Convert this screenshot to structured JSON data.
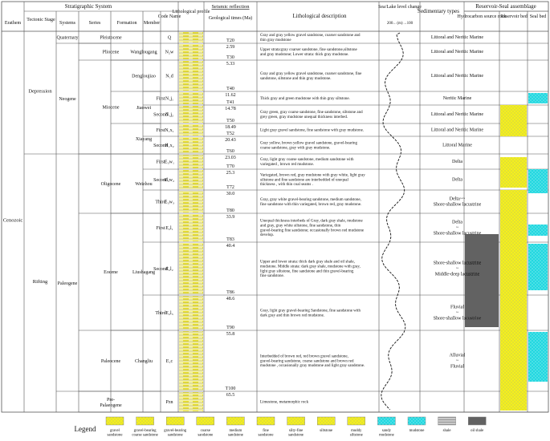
{
  "header": {
    "stratigraphic_system": "Stratigraphic System",
    "erathem": "Erathem",
    "tectonic_stage": "Tectonic Stage",
    "systems": "Systems",
    "series": "Series",
    "formation": "Formation",
    "member": "Member",
    "code_name": "Code Name",
    "lithological_profile": "Lithological profile",
    "seismic_reflection": "Seismic reflection",
    "geological_times": "Geological times (Ma)",
    "lithological_description": "Lithological description",
    "sea_level": "Sea/Lake level change",
    "sea_level_scale": "200←(m)→100",
    "sedimentary_types": "Sedimentary types",
    "assemblage": "Reservoir-Seal assemblage",
    "hydrocarbon_source": "Hydrocarbon source rock",
    "reservoir_bed": "Reservoir bed",
    "seal_bed": "Seal bed"
  },
  "erathem": "Cenozoic",
  "tectonic_stages": [
    "Depression",
    "Rifting"
  ],
  "systems": [
    "Quaternary",
    "Neogene",
    "Paleogene"
  ],
  "series": [
    "Pleistocene",
    "Pliocene",
    "Miocene",
    "Oligocene",
    "Eocene",
    "Paleocene",
    "Pre-Palaeogene"
  ],
  "formations": [
    "Wanglougang",
    "Dengloujiao",
    "Jiaowei",
    "Xiayang",
    "Weizhou",
    "Liushagang",
    "Changliu"
  ],
  "rows": [
    {
      "member": "",
      "code": "Q",
      "seismic": "T20",
      "age": "",
      "desc": "Gray and gray yellow gravel sandstone, coarser sandstone and thin gray mudstone",
      "sed": "Littoral and Neritic Marine"
    },
    {
      "member": "",
      "code": "N₂w",
      "seismic": "T30",
      "age": "2.59",
      "desc": "Upper strata:gray coarser sandstone, fine sandstone,siltstone and gray mudstone; Lower strata: thick gray mudstone.",
      "sed": "Littoral and Neritic Marine"
    },
    {
      "member": "",
      "code": "N₁d",
      "seismic": "T40",
      "age": "5.33",
      "desc": "Gray and gray yellow gravel sandstone, coarser sandstone, fine sandstone, siltstone and thin gray mudstone.",
      "sed": "Littoral and Neritic Marine"
    },
    {
      "member": "First",
      "code": "N₁j₁",
      "seismic": "T41",
      "age": "11.62",
      "desc": "Thick gray and green mudstone with thin gray siltstone.",
      "sed": "Neritic Marine"
    },
    {
      "member": "Second",
      "code": "N₁j₂",
      "seismic": "T50",
      "age": "14.78",
      "desc": "Gray green, gray coarse sandstone, fine sandstone, siltstone and grey green, gray mudstone unequal thickness interbed.",
      "sed": "Littoral and Neritic Marine"
    },
    {
      "member": "First",
      "code": "N₁x₁",
      "seismic": "T52",
      "age": "18.49",
      "desc": "Light gray gravel sandstone, fine sandstone with gray mudstone.",
      "sed": "Littoral and Neritic Marine"
    },
    {
      "member": "Second",
      "code": "N₁x₂",
      "seismic": "T60",
      "age": "20.43",
      "desc": "Gray yellow, brown yellow gravel sandstone, gravel-bearing coarse sandstone, gray with gray mudstone.",
      "sed": "Littoral Marine"
    },
    {
      "member": "First",
      "code": "E₃w₁",
      "seismic": "T70",
      "age": "23.03",
      "desc": "Gray, light gray coarse sandstone, medium sandstone with variegated , brown red mudstone.",
      "sed": "Delta"
    },
    {
      "member": "Second",
      "code": "E₃w₂",
      "seismic": "T72",
      "age": "25.3",
      "desc": "Variegated, brown red, gray mudstone with gray white, light gray siltstone and fine sandstone are interbedded of unequal thickness , with thin coal seams .",
      "sed": "Delta"
    },
    {
      "member": "Third",
      "code": "E₃w₃",
      "seismic": "T80",
      "age": "30.0",
      "desc": "Gray, gray white gravel-bearing sandstone, medium sandstone, fine sandstone with thin variegated, brown red, gray mudstone.",
      "sed": "Delta~~ Shore-shallow lacustrine"
    },
    {
      "member": "First",
      "code": "E₂l₁",
      "seismic": "T83",
      "age": "33.9",
      "desc": "Unequal thickness interbeds of Gray, dark gray shale, mudstone and gray, gray white siltstone, fine sandstone, thin gravel-bearing fine sandstone; occasionally brown red mudstone develop.",
      "sed": "Delta ~ Shore-shallow lacustrine"
    },
    {
      "member": "Second",
      "code": "E₂l₂",
      "seismic": "T86",
      "age": "40.4",
      "desc": "Upper and lower strata: thick dark gray shale and oil shale, mudstone. Middle strata: dark gray shale, mudstone with gray, light gray siltstone, fine sandstone and thin gravel-bearing fine sandstone.",
      "sed": "Shore-shallow lacustrine ~ Middle-deep lacustrine"
    },
    {
      "member": "Third",
      "code": "E₂l₃",
      "seismic": "T90",
      "age": "48.6",
      "desc": "Gray, light gray gravel-bearing Sandstone, fine sandstone with dark gray and thin brown red mudstone.",
      "sed": "Fluvial ~ Shore-shallow lacustrine"
    },
    {
      "member": "",
      "code": "E₁c",
      "seismic": "T100",
      "age": "55.8",
      "desc": "Interbedded of brown red, red brown gravel sandstone, gravel-bearing sandstone, coarse sandstone and brown red mudstone , occasionally gray mudstone and light gray sandstone.",
      "sed": "Alluvial ~ Fluvial"
    },
    {
      "member": "",
      "code": "Pzn",
      "seismic": "",
      "age": "65.5",
      "desc": "Limestone, metamorphic rock",
      "sed": ""
    }
  ],
  "legend": {
    "title": "Legend",
    "items": [
      "gravel sandstone",
      "gravel-bearing coarse sandstone",
      "gravel-bearing sandstone",
      "coarse sandstone",
      "medium sandstone",
      "fine sandstone",
      "silty-fine sandstone",
      "siltstone",
      "muddy siltstone",
      "sandy mudstone",
      "mudstone",
      "shale",
      "oil shale"
    ]
  },
  "colors": {
    "sand": "#f4f01c",
    "mud": "#22d8e0",
    "shale": "#bdbdbd",
    "oil_shale": "#555555",
    "lines": "#555555"
  }
}
